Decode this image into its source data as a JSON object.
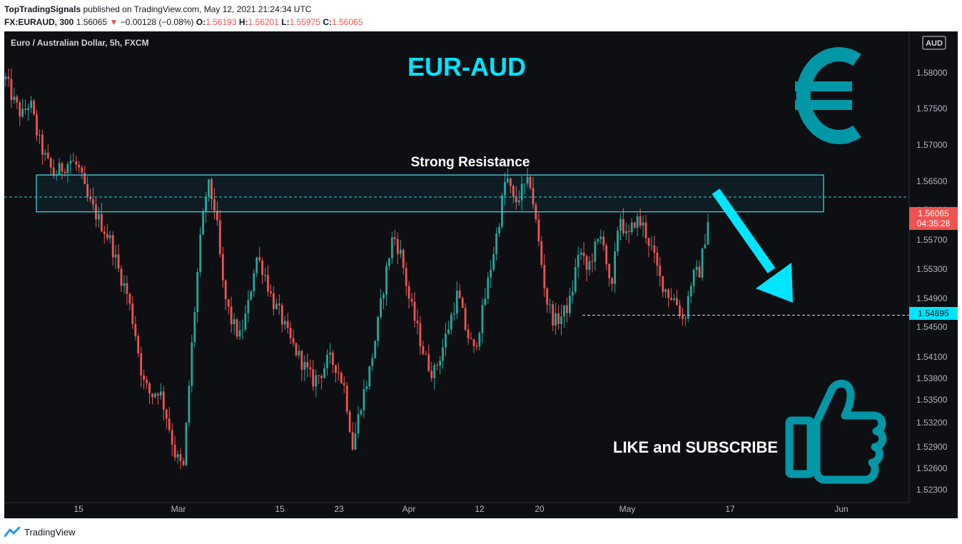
{
  "header": {
    "publisher": "TopTradingSignals",
    "published_text": "published on TradingView.com, May 12, 2021 21:24:34 UTC",
    "symbol": "FX:EURAUD, 300",
    "last": "1.56065",
    "change_arrow": "▼",
    "change": "−0.00128 (−0.08%)",
    "o_label": "O:",
    "o_value": "1.56193",
    "h_label": "H:",
    "h_value": "1.56201",
    "l_label": "L:",
    "l_value": "1.55975",
    "c_label": "C:",
    "c_value": "1.56065"
  },
  "chart_data": {
    "type": "candlestick",
    "title": "EUR-AUD",
    "instrument_label": "Euro / Australian Dollar, 5h, FXCM",
    "currency_badge": "AUD",
    "y_ticks": [
      "1.58000",
      "1.57500",
      "1.57000",
      "1.56500",
      "1.56100",
      "1.55700",
      "1.55300",
      "1.54900",
      "1.54500",
      "1.54100",
      "1.53800",
      "1.53500",
      "1.53200",
      "1.52900",
      "1.52600",
      "1.52300"
    ],
    "x_ticks": [
      "15",
      "Mar",
      "15",
      "23",
      "Apr",
      "12",
      "20",
      "May",
      "17",
      "Jun"
    ],
    "ylim": [
      1.5215,
      1.5855
    ],
    "close_series": [
      1.579,
      1.576,
      1.574,
      1.576,
      1.571,
      1.568,
      1.566,
      1.567,
      1.568,
      1.567,
      1.563,
      1.561,
      1.559,
      1.557,
      1.553,
      1.55,
      1.545,
      1.538,
      1.536,
      1.537,
      1.533,
      1.528,
      1.526,
      1.542,
      1.556,
      1.565,
      1.561,
      1.55,
      1.546,
      1.544,
      1.548,
      1.555,
      1.553,
      1.549,
      1.547,
      1.544,
      1.542,
      1.54,
      1.538,
      1.539,
      1.541,
      1.54,
      1.537,
      1.529,
      1.535,
      1.539,
      1.545,
      1.552,
      1.558,
      1.555,
      1.549,
      1.545,
      1.541,
      1.539,
      1.542,
      1.546,
      1.55,
      1.545,
      1.542,
      1.547,
      1.553,
      1.559,
      1.566,
      1.562,
      1.564,
      1.565,
      1.557,
      1.549,
      1.546,
      1.547,
      1.549,
      1.556,
      1.553,
      1.556,
      1.558,
      1.549,
      1.561,
      1.557,
      1.56,
      1.559,
      1.556,
      1.552,
      1.55,
      1.549,
      1.546,
      1.552,
      1.553,
      1.56
    ],
    "price_labels": [
      {
        "value": "1.56065",
        "sub": "04:35:28",
        "color": "#ef5350"
      },
      {
        "value": "1.54695",
        "color": "#00e5ff"
      }
    ],
    "annotations": {
      "resistance_label": "Strong Resistance",
      "resistance_zone": [
        1.561,
        1.566
      ],
      "target_level": 1.54695,
      "current_level": 1.563,
      "cta": "LIKE and SUBSCRIBE"
    },
    "colors": {
      "up": "#26a69a",
      "down": "#ef5350",
      "accent": "#00e5ff",
      "icon": "#0097a7",
      "background": "#0e0f13"
    }
  },
  "footer": {
    "brand": "TradingView"
  }
}
